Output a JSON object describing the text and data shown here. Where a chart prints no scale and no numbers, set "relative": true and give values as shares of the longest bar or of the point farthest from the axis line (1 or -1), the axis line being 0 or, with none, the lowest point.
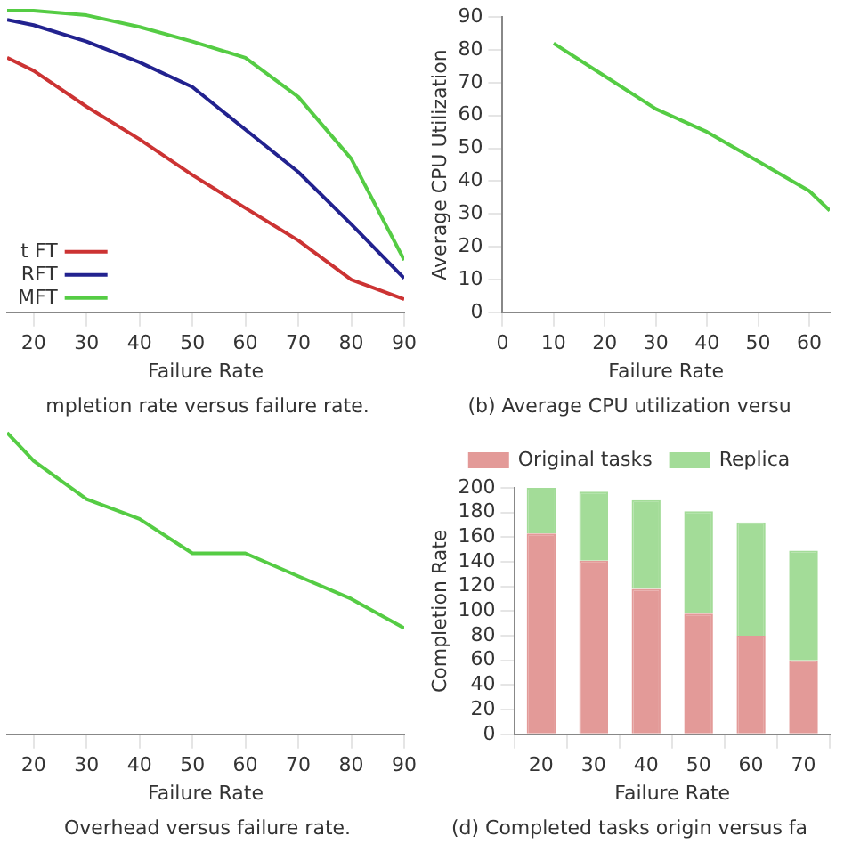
{
  "chart_data": [
    {
      "type": "line",
      "title": "mpletion rate versus failure rate.",
      "xlabel": "Failure Rate",
      "relative": true,
      "tick_labels": "x",
      "legend": "bottom left",
      "marker": "none",
      "line_style": "solid",
      "x": [
        15,
        20,
        30,
        40,
        50,
        60,
        70,
        80,
        90
      ],
      "xlim": [
        15,
        90
      ],
      "xticks": [
        20,
        30,
        40,
        50,
        60,
        70,
        80,
        90
      ],
      "series": [
        {
          "name": "t FT",
          "color": "#cc3333",
          "values": [
            0.844,
            0.801,
            0.682,
            0.574,
            0.455,
            0.346,
            0.238,
            0.108,
            0.043
          ]
        },
        {
          "name": "RFT",
          "color": "#22228f",
          "values": [
            0.97,
            0.952,
            0.898,
            0.829,
            0.747,
            0.606,
            0.465,
            0.292,
            0.113
          ]
        },
        {
          "name": "MFT",
          "color": "#55cc44",
          "values": [
            1,
            1,
            0.985,
            0.946,
            0.898,
            0.844,
            0.714,
            0.509,
            0.173
          ]
        }
      ]
    },
    {
      "type": "line",
      "title": "(b) Average CPU utilization versu",
      "xlabel": "Failure Rate",
      "ylabel": "Average CPU Utilization",
      "marker": "none",
      "line_style": "solid",
      "x": [
        10,
        20,
        30,
        40,
        50,
        60,
        64
      ],
      "xlim": [
        0,
        64
      ],
      "xticks": [
        0,
        10,
        20,
        30,
        40,
        50,
        60
      ],
      "ylim": [
        0,
        90
      ],
      "yticks": [
        0,
        10,
        20,
        30,
        40,
        50,
        60,
        70,
        80,
        90
      ],
      "series": [
        {
          "color": "#55cc44",
          "values": [
            82,
            72,
            62,
            55,
            46,
            37,
            31
          ]
        }
      ]
    },
    {
      "type": "line",
      "title": "Overhead versus failure rate.",
      "xlabel": "Failure Rate",
      "relative": true,
      "tick_labels": "x",
      "marker": "none",
      "line_style": "solid",
      "x": [
        15,
        20,
        30,
        40,
        50,
        60,
        70,
        80,
        90
      ],
      "xlim": [
        15,
        90
      ],
      "xticks": [
        20,
        30,
        40,
        50,
        60,
        70,
        80,
        90
      ],
      "series": [
        {
          "color": "#55cc44",
          "values": [
            1,
            0.907,
            0.78,
            0.714,
            0.6,
            0.6,
            0.524,
            0.449,
            0.352
          ]
        }
      ]
    },
    {
      "type": "bar",
      "stacked": true,
      "title": "(d) Completed tasks origin versus fa",
      "xlabel": "Failure Rate",
      "ylabel": "Completion Rate",
      "legend": "top",
      "categories": [
        "20",
        "30",
        "40",
        "50",
        "60",
        "70"
      ],
      "ylim": [
        0,
        200
      ],
      "yticks": [
        0,
        20,
        40,
        60,
        80,
        100,
        120,
        140,
        160,
        180,
        200
      ],
      "series": [
        {
          "name": "Original tasks",
          "color": "#e39a98",
          "values": [
            163,
            141,
            118,
            98,
            80,
            60
          ]
        },
        {
          "name": "Replica",
          "color": "#a3dc98",
          "values": [
            37,
            56,
            72,
            83,
            92,
            89
          ]
        }
      ]
    }
  ]
}
